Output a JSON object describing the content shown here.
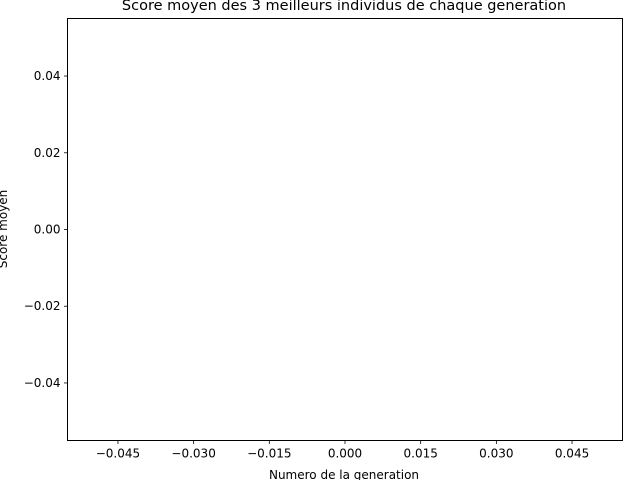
{
  "chart_data": {
    "type": "line",
    "title": "Score moyen des 3 meilleurs individus de chaque generation",
    "xlabel": "Numero de la generation",
    "ylabel": "Score moyen",
    "xlim": [
      -0.055,
      0.055
    ],
    "ylim": [
      -0.055,
      0.055
    ],
    "x_ticks": [
      -0.045,
      -0.03,
      -0.015,
      0.0,
      0.015,
      0.03,
      0.045
    ],
    "x_tick_labels": [
      "−0.045",
      "−0.030",
      "−0.015",
      "0.000",
      "0.015",
      "0.030",
      "0.045"
    ],
    "y_ticks": [
      0.04,
      0.02,
      0.0,
      -0.02,
      -0.04
    ],
    "y_tick_labels": [
      "0.04",
      "0.02",
      "0.00",
      "−0.02",
      "−0.04"
    ],
    "series": [],
    "grid": false,
    "legend": "none"
  }
}
